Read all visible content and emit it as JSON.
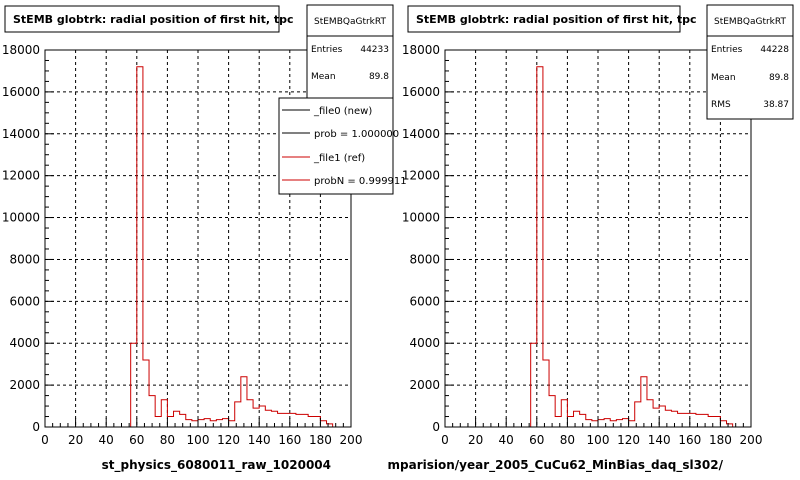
{
  "chart_data": [
    {
      "type": "histogram",
      "title": "StEMB globtrk: radial position of first hit, tpc",
      "xlabel": "st_physics_6080011_raw_1020004",
      "ylabel": "",
      "xlim": [
        0,
        200
      ],
      "ylim": [
        0,
        18000
      ],
      "x_ticks": [
        "0",
        "20",
        "40",
        "60",
        "80",
        "100",
        "120",
        "140",
        "160",
        "180",
        "200"
      ],
      "y_ticks": [
        "0",
        "2000",
        "4000",
        "6000",
        "8000",
        "10000",
        "12000",
        "14000",
        "16000",
        "18000"
      ],
      "grid": true,
      "bin_width": 4,
      "series": [
        {
          "color": "#cc0000",
          "values": [
            0,
            0,
            0,
            0,
            0,
            0,
            0,
            0,
            0,
            0,
            0,
            0,
            0,
            0,
            4000,
            17200,
            3200,
            1500,
            500,
            1300,
            500,
            750,
            600,
            350,
            300,
            350,
            400,
            300,
            350,
            400,
            300,
            1200,
            2400,
            1300,
            900,
            1000,
            800,
            750,
            650,
            650,
            650,
            600,
            600,
            500,
            500,
            300,
            150,
            0,
            0,
            0,
            0
          ]
        }
      ],
      "stats": {
        "name": "StEMBQaGtrkRT",
        "rows": [
          {
            "label": "Entries",
            "value": "44233"
          },
          {
            "label": "Mean",
            "value": "89.8"
          }
        ]
      },
      "legend": {
        "position": "top-right",
        "entries": [
          {
            "label": "_file0 (new)",
            "color": "#000000"
          },
          {
            "label": "prob = 1.000000",
            "color": "#000000"
          },
          {
            "label": "_file1 (ref)",
            "color": "#cc0000"
          },
          {
            "label": "probN = 0.999911",
            "color": "#cc0000"
          }
        ]
      }
    },
    {
      "type": "histogram",
      "title": "StEMB globtrk: radial position of first hit, tpc",
      "xlabel": "mparision/year_2005_CuCu62_MinBias_daq_sl302/",
      "ylabel": "",
      "xlim": [
        0,
        200
      ],
      "ylim": [
        0,
        18000
      ],
      "x_ticks": [
        "0",
        "20",
        "40",
        "60",
        "80",
        "100",
        "120",
        "140",
        "160",
        "180",
        "200"
      ],
      "y_ticks": [
        "0",
        "2000",
        "4000",
        "6000",
        "8000",
        "10000",
        "12000",
        "14000",
        "16000",
        "18000"
      ],
      "grid": true,
      "bin_width": 4,
      "series": [
        {
          "color": "#cc0000",
          "values": [
            0,
            0,
            0,
            0,
            0,
            0,
            0,
            0,
            0,
            0,
            0,
            0,
            0,
            0,
            4000,
            17200,
            3200,
            1500,
            500,
            1300,
            500,
            750,
            600,
            350,
            300,
            350,
            400,
            300,
            350,
            400,
            300,
            1200,
            2400,
            1300,
            900,
            1000,
            800,
            750,
            650,
            650,
            650,
            600,
            600,
            500,
            500,
            300,
            150,
            0,
            0,
            0,
            0
          ]
        }
      ],
      "stats": {
        "name": "StEMBQaGtrkRT",
        "rows": [
          {
            "label": "Entries",
            "value": "44228"
          },
          {
            "label": "Mean",
            "value": "89.8"
          },
          {
            "label": "RMS",
            "value": "38.87"
          }
        ]
      }
    }
  ]
}
